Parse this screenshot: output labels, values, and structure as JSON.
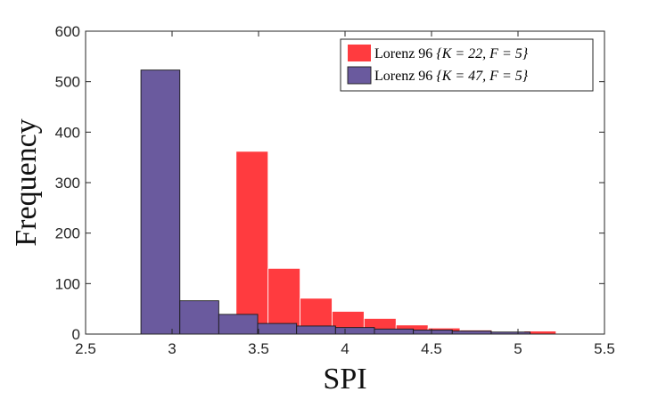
{
  "chart_data": {
    "type": "bar",
    "subtype": "histogram",
    "title": "",
    "xlabel": "SPI",
    "ylabel": "Frequency",
    "xlim": [
      2.5,
      5.5
    ],
    "ylim": [
      0,
      600
    ],
    "xticks": [
      2.5,
      3,
      3.5,
      4,
      4.5,
      5,
      5.5
    ],
    "xtick_labels": [
      "2.5",
      "3",
      "3.5",
      "4",
      "4.5",
      "5",
      "5.5"
    ],
    "yticks": [
      0,
      100,
      200,
      300,
      400,
      500,
      600
    ],
    "ytick_labels": [
      "0",
      "100",
      "200",
      "300",
      "400",
      "500",
      "600"
    ],
    "grid": false,
    "legend_position": "top-right",
    "series": [
      {
        "name": "Lorenz 96 {K = 22, F = 5}",
        "legend_prefix": "Lorenz 96 ",
        "legend_math": "{K = 22, F = 5}",
        "color": "#FF3B3F",
        "bin_edges": [
          3.37,
          3.555,
          3.74,
          3.925,
          4.11,
          4.295,
          4.48,
          4.665,
          4.85,
          5.035,
          5.22
        ],
        "counts": [
          362,
          130,
          71,
          45,
          31,
          18,
          12,
          8,
          4,
          6
        ]
      },
      {
        "name": "Lorenz 96 {K = 47, F = 5}",
        "legend_prefix": "Lorenz 96 ",
        "legend_math": "{K = 47, F = 5}",
        "color": "#6A5A9E",
        "bin_edges": [
          2.82,
          3.045,
          3.27,
          3.495,
          3.72,
          3.945,
          4.17,
          4.395,
          4.62,
          4.845,
          5.07
        ],
        "counts": [
          523,
          66,
          39,
          21,
          16,
          13,
          10,
          8,
          6,
          4
        ]
      }
    ]
  }
}
